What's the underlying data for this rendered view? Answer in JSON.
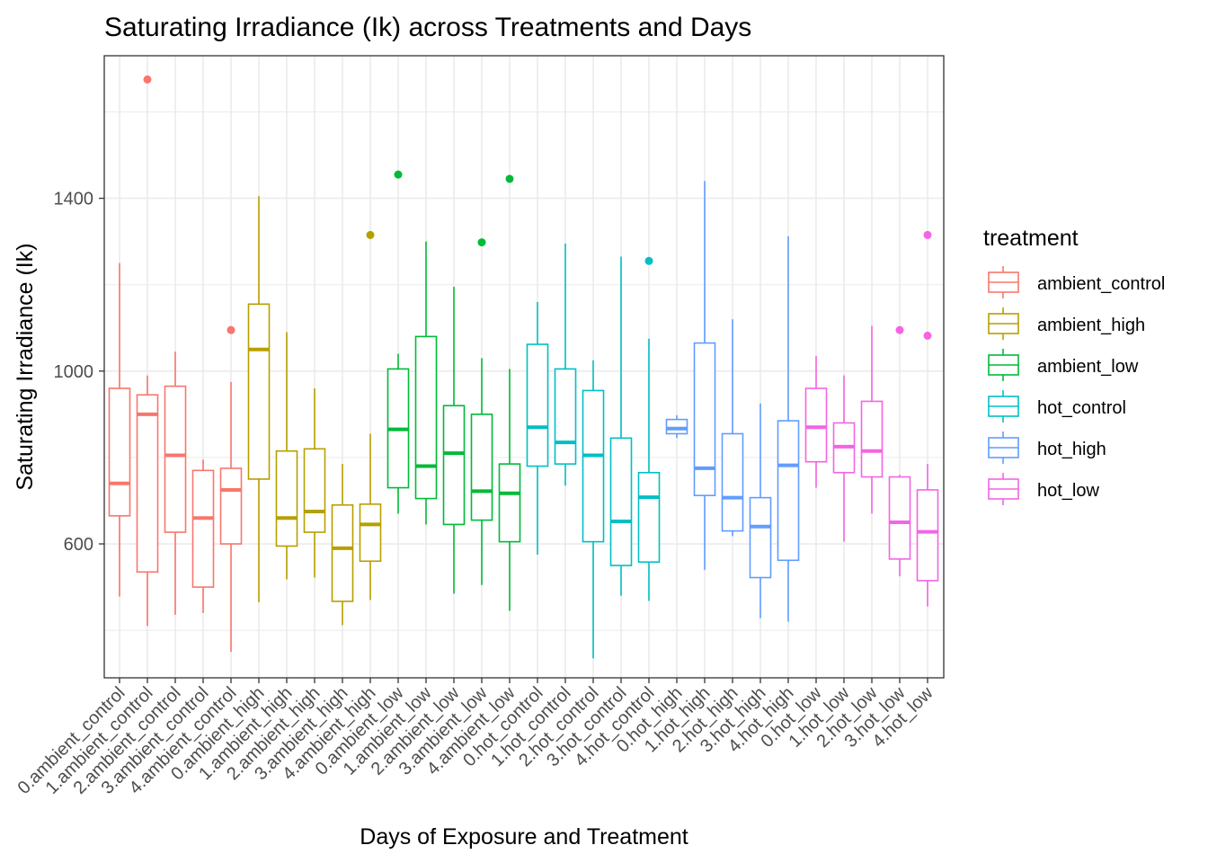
{
  "chart_data": {
    "type": "boxplot",
    "title": "Saturating Irradiance (Ik) across Treatments and Days",
    "xlabel": "Days of Exposure and Treatment",
    "ylabel": "Saturating Irradiance (Ik)",
    "ylim": [
      290,
      1730
    ],
    "yticks": [
      600,
      1000,
      1400
    ],
    "grid": true,
    "legend": {
      "title": "treatment",
      "position": "right",
      "entries": [
        {
          "name": "ambient_control",
          "color": "#F8766D"
        },
        {
          "name": "ambient_high",
          "color": "#B79F00"
        },
        {
          "name": "ambient_low",
          "color": "#00BA38"
        },
        {
          "name": "hot_control",
          "color": "#00BFC4"
        },
        {
          "name": "hot_high",
          "color": "#619CFF"
        },
        {
          "name": "hot_low",
          "color": "#F564E3"
        }
      ]
    },
    "categories": [
      "0.ambient_control",
      "1.ambient_control",
      "2.ambient_control",
      "3.ambient_control",
      "4.ambient_control",
      "0.ambient_high",
      "1.ambient_high",
      "2.ambient_high",
      "3.ambient_high",
      "4.ambient_high",
      "0.ambient_low",
      "1.ambient_low",
      "2.ambient_low",
      "3.ambient_low",
      "4.ambient_low",
      "0.hot_control",
      "1.hot_control",
      "2.hot_control",
      "3.hot_control",
      "4.hot_control",
      "0.hot_high",
      "1.hot_high",
      "2.hot_high",
      "3.hot_high",
      "4.hot_high",
      "0.hot_low",
      "1.hot_low",
      "2.hot_low",
      "3.hot_low",
      "4.hot_low"
    ],
    "boxes": [
      {
        "treatment": "ambient_control",
        "min": 478,
        "q1": 665,
        "median": 740,
        "q3": 960,
        "max": 1250,
        "outliers": []
      },
      {
        "treatment": "ambient_control",
        "min": 410,
        "q1": 535,
        "median": 900,
        "q3": 945,
        "max": 990,
        "outliers": [
          1675
        ]
      },
      {
        "treatment": "ambient_control",
        "min": 436,
        "q1": 627,
        "median": 805,
        "q3": 965,
        "max": 1045,
        "outliers": []
      },
      {
        "treatment": "ambient_control",
        "min": 440,
        "q1": 500,
        "median": 660,
        "q3": 770,
        "max": 795,
        "outliers": []
      },
      {
        "treatment": "ambient_control",
        "min": 350,
        "q1": 600,
        "median": 725,
        "q3": 775,
        "max": 975,
        "outliers": [
          1095
        ]
      },
      {
        "treatment": "ambient_high",
        "min": 465,
        "q1": 750,
        "median": 1050,
        "q3": 1155,
        "max": 1405,
        "outliers": []
      },
      {
        "treatment": "ambient_high",
        "min": 518,
        "q1": 595,
        "median": 660,
        "q3": 815,
        "max": 1090,
        "outliers": []
      },
      {
        "treatment": "ambient_high",
        "min": 522,
        "q1": 627,
        "median": 675,
        "q3": 820,
        "max": 960,
        "outliers": []
      },
      {
        "treatment": "ambient_high",
        "min": 412,
        "q1": 467,
        "median": 590,
        "q3": 690,
        "max": 785,
        "outliers": []
      },
      {
        "treatment": "ambient_high",
        "min": 470,
        "q1": 560,
        "median": 645,
        "q3": 692,
        "max": 855,
        "outliers": [
          1315
        ]
      },
      {
        "treatment": "ambient_low",
        "min": 670,
        "q1": 730,
        "median": 865,
        "q3": 1005,
        "max": 1040,
        "outliers": [
          1455
        ]
      },
      {
        "treatment": "ambient_low",
        "min": 645,
        "q1": 705,
        "median": 780,
        "q3": 1080,
        "max": 1300,
        "outliers": []
      },
      {
        "treatment": "ambient_low",
        "min": 485,
        "q1": 645,
        "median": 810,
        "q3": 920,
        "max": 1195,
        "outliers": []
      },
      {
        "treatment": "ambient_low",
        "min": 505,
        "q1": 655,
        "median": 722,
        "q3": 900,
        "max": 1030,
        "outliers": [
          1298
        ]
      },
      {
        "treatment": "ambient_low",
        "min": 445,
        "q1": 605,
        "median": 717,
        "q3": 785,
        "max": 1005,
        "outliers": [
          1445
        ]
      },
      {
        "treatment": "hot_control",
        "min": 575,
        "q1": 780,
        "median": 870,
        "q3": 1062,
        "max": 1160,
        "outliers": []
      },
      {
        "treatment": "hot_control",
        "min": 735,
        "q1": 785,
        "median": 835,
        "q3": 1005,
        "max": 1295,
        "outliers": []
      },
      {
        "treatment": "hot_control",
        "min": 335,
        "q1": 605,
        "median": 805,
        "q3": 955,
        "max": 1025,
        "outliers": []
      },
      {
        "treatment": "hot_control",
        "min": 480,
        "q1": 550,
        "median": 652,
        "q3": 845,
        "max": 1265,
        "outliers": []
      },
      {
        "treatment": "hot_control",
        "min": 468,
        "q1": 558,
        "median": 708,
        "q3": 765,
        "max": 1075,
        "outliers": [
          1255
        ]
      },
      {
        "treatment": "hot_high",
        "min": 845,
        "q1": 855,
        "median": 867,
        "q3": 888,
        "max": 898,
        "outliers": []
      },
      {
        "treatment": "hot_high",
        "min": 540,
        "q1": 712,
        "median": 775,
        "q3": 1065,
        "max": 1440,
        "outliers": []
      },
      {
        "treatment": "hot_high",
        "min": 618,
        "q1": 630,
        "median": 707,
        "q3": 855,
        "max": 1120,
        "outliers": []
      },
      {
        "treatment": "hot_high",
        "min": 428,
        "q1": 522,
        "median": 640,
        "q3": 707,
        "max": 925,
        "outliers": []
      },
      {
        "treatment": "hot_high",
        "min": 420,
        "q1": 562,
        "median": 782,
        "q3": 885,
        "max": 1312,
        "outliers": []
      },
      {
        "treatment": "hot_low",
        "min": 730,
        "q1": 790,
        "median": 870,
        "q3": 960,
        "max": 1035,
        "outliers": []
      },
      {
        "treatment": "hot_low",
        "min": 605,
        "q1": 765,
        "median": 825,
        "q3": 880,
        "max": 990,
        "outliers": []
      },
      {
        "treatment": "hot_low",
        "min": 670,
        "q1": 755,
        "median": 815,
        "q3": 930,
        "max": 1105,
        "outliers": []
      },
      {
        "treatment": "hot_low",
        "min": 525,
        "q1": 565,
        "median": 650,
        "q3": 755,
        "max": 760,
        "outliers": [
          1095
        ]
      },
      {
        "treatment": "hot_low",
        "min": 455,
        "q1": 515,
        "median": 628,
        "q3": 725,
        "max": 785,
        "outliers": [
          1082,
          1315
        ]
      }
    ]
  }
}
